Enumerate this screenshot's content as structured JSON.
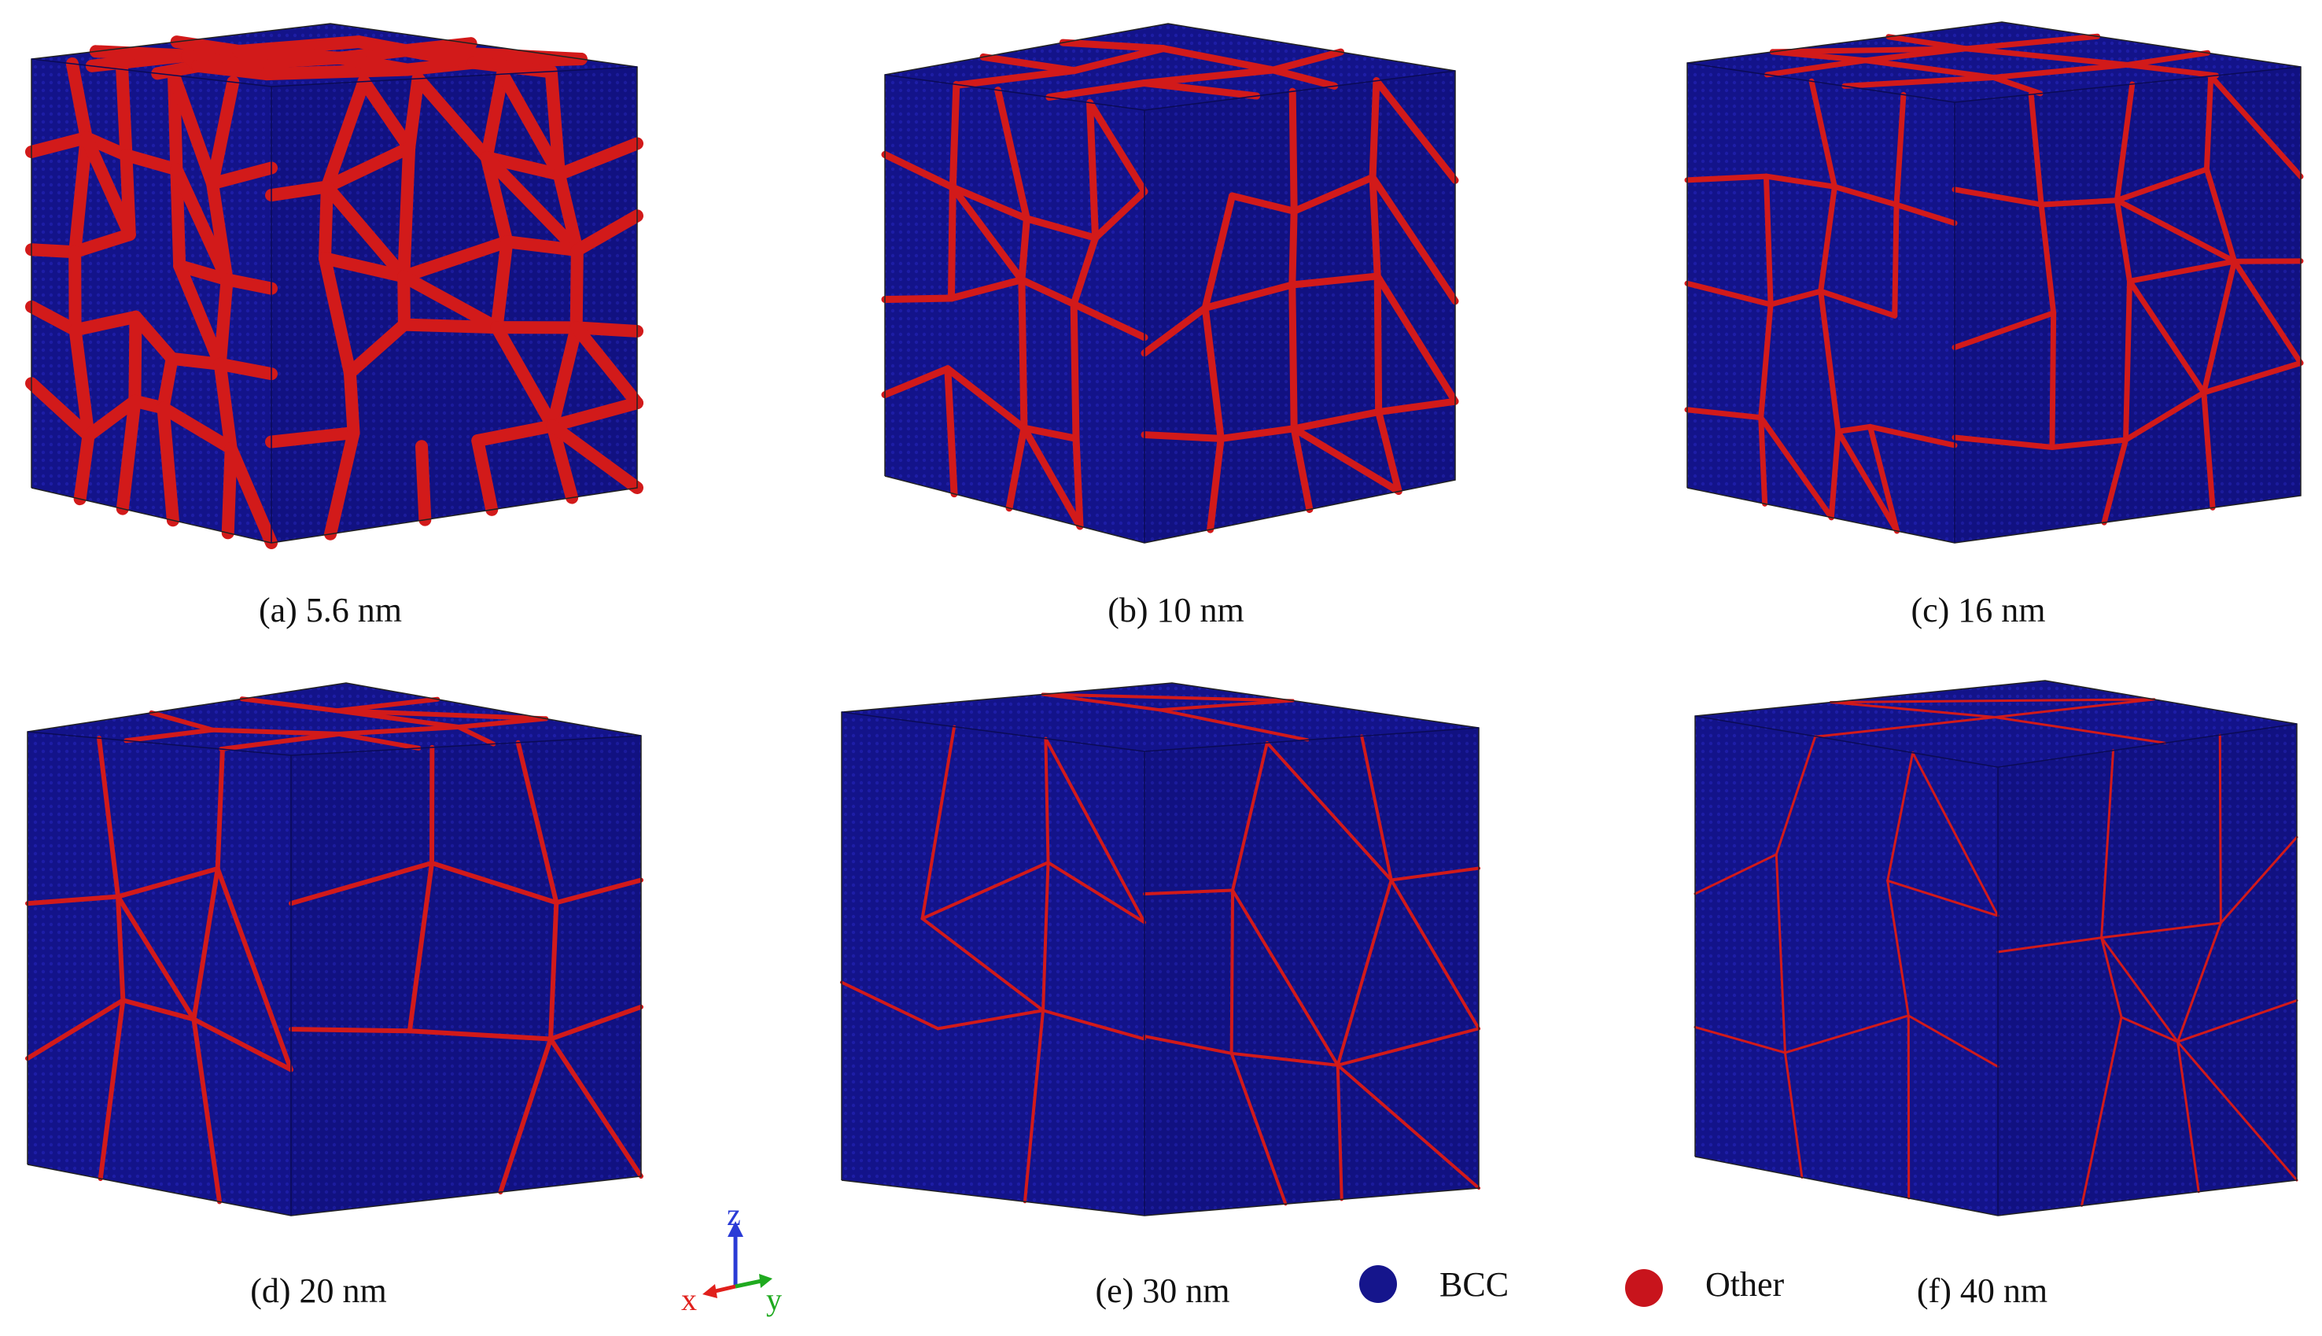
{
  "panels": [
    {
      "caption": "(a) 5.6 nm",
      "grain_size_nm": 5.6
    },
    {
      "caption": "(b) 10 nm",
      "grain_size_nm": 10
    },
    {
      "caption": "(c) 16 nm",
      "grain_size_nm": 16
    },
    {
      "caption": "(d) 20 nm",
      "grain_size_nm": 20
    },
    {
      "caption": "(e) 30 nm",
      "grain_size_nm": 30
    },
    {
      "caption": "(f) 40 nm",
      "grain_size_nm": 40
    }
  ],
  "axes": {
    "z": "z",
    "x": "x",
    "y": "y",
    "z_color": "#2a3bd6",
    "x_color": "#e0201c",
    "y_color": "#1faa1f"
  },
  "legend": [
    {
      "label": "BCC",
      "color": "#15158c"
    },
    {
      "label": "Other",
      "color": "#c8141c"
    }
  ],
  "colors": {
    "bcc": "#15158c",
    "other": "#d21a1a"
  }
}
